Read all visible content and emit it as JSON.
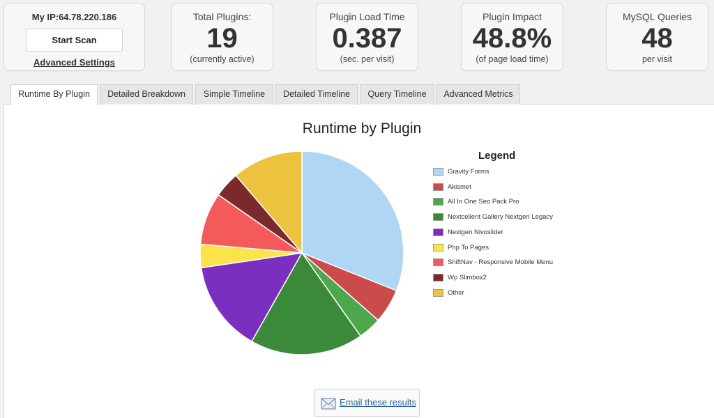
{
  "header": {
    "ip_label": "My IP:64.78.220.186",
    "scan_button": "Start Scan",
    "advanced_link": "Advanced Settings"
  },
  "stats": [
    {
      "title": "Total Plugins:",
      "value": "19",
      "sub": "(currently active)"
    },
    {
      "title": "Plugin Load Time",
      "value": "0.387",
      "sub": "(sec. per visit)"
    },
    {
      "title": "Plugin Impact",
      "value": "48.8%",
      "sub": "(of page load time)"
    },
    {
      "title": "MySQL Queries",
      "value": "48",
      "sub": "per visit"
    }
  ],
  "tabs": [
    {
      "label": "Runtime By Plugin",
      "active": true
    },
    {
      "label": "Detailed Breakdown",
      "active": false
    },
    {
      "label": "Simple Timeline",
      "active": false
    },
    {
      "label": "Detailed Timeline",
      "active": false
    },
    {
      "label": "Query Timeline",
      "active": false
    },
    {
      "label": "Advanced Metrics",
      "active": false
    }
  ],
  "chart_data": {
    "type": "pie",
    "title": "Runtime by Plugin",
    "legend_title": "Legend",
    "legend_position": "right",
    "slices": [
      {
        "label": "Gravity Forms",
        "value": 31.8,
        "color": "#afd6f5"
      },
      {
        "label": "Akismet",
        "value": 5.6,
        "color": "#cb4b4b"
      },
      {
        "label": "All In One Seo Pack Pro",
        "value": 3.8,
        "color": "#4da74d"
      },
      {
        "label": "Nextcellent Gallery Nextgen Legacy",
        "value": 18.4,
        "color": "#3a8a3a"
      },
      {
        "label": "Nextgen Nivoslider",
        "value": 14.8,
        "color": "#7a2fc0"
      },
      {
        "label": "Php To Pages",
        "value": 3.8,
        "color": "#fbe44a"
      },
      {
        "label": "ShiftNav - Responsive Mobile Menu",
        "value": 8.5,
        "color": "#f55a5a"
      },
      {
        "label": "Wp Slimbox2",
        "value": 4.2,
        "color": "#7a2a2a"
      },
      {
        "label": "Other",
        "value": 11.5,
        "color": "#ecc23f"
      }
    ]
  },
  "email": {
    "label": "Email these results",
    "icon": "envelope-icon"
  }
}
